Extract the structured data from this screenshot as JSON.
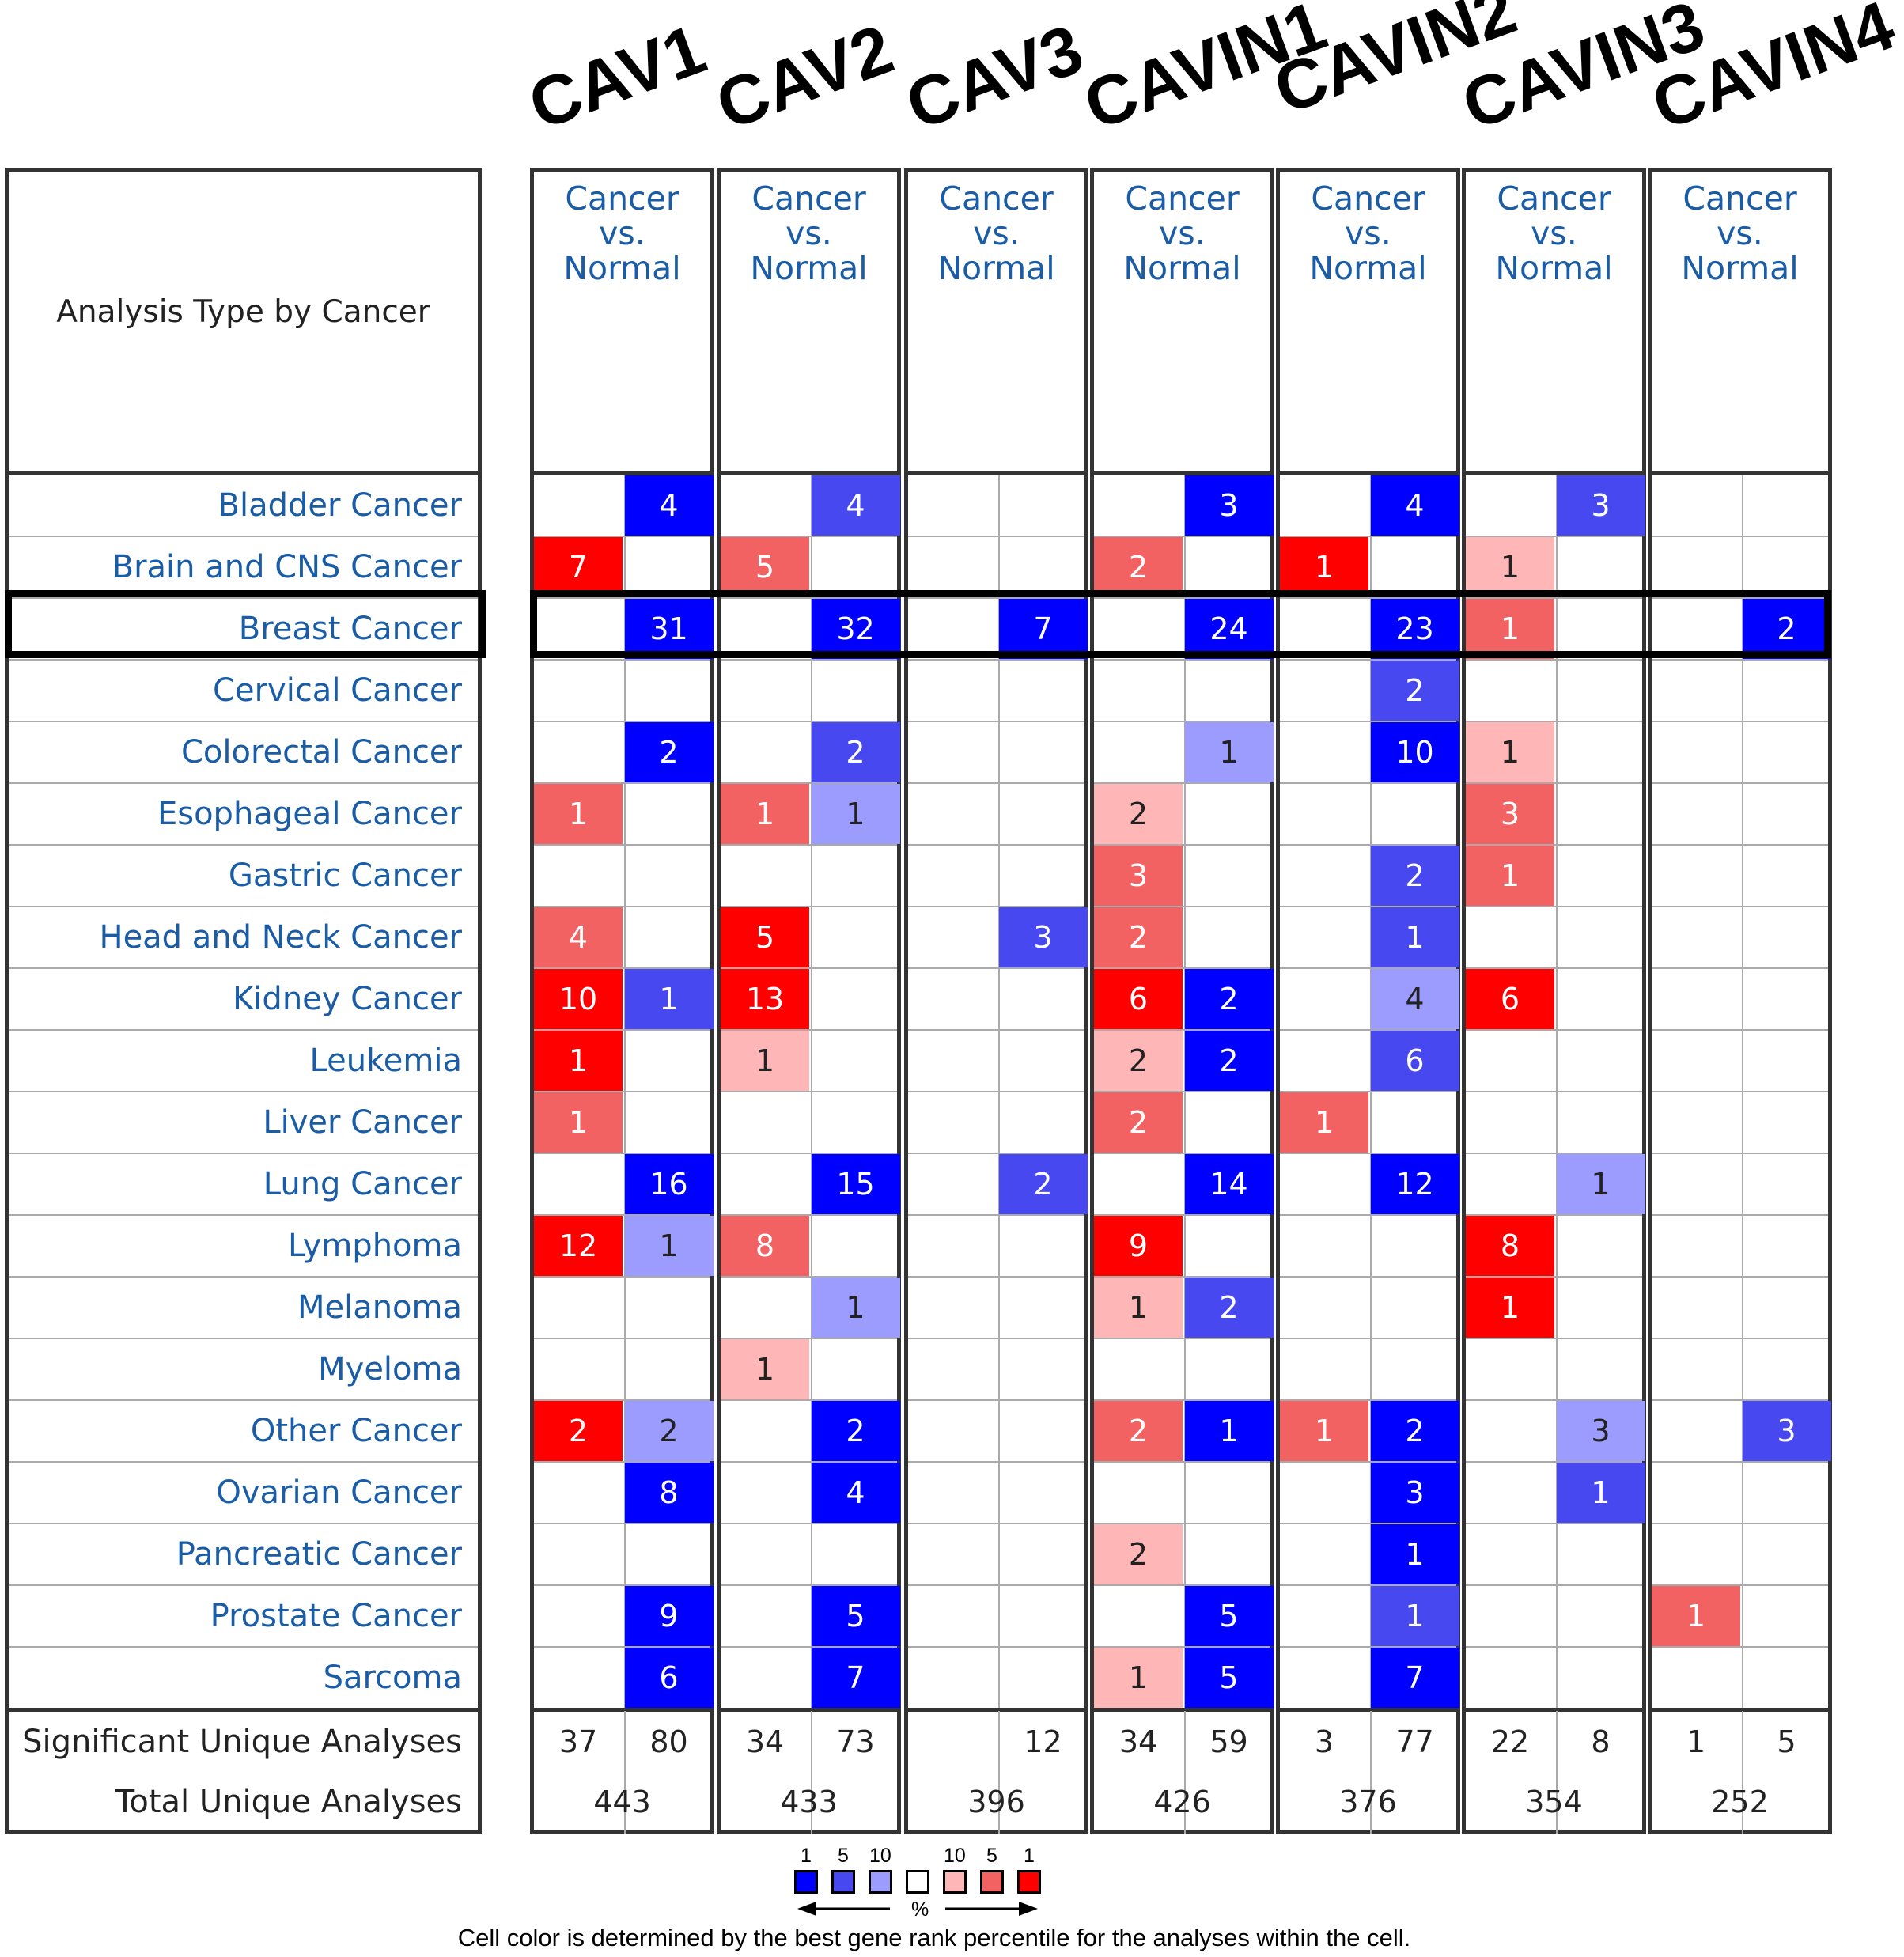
{
  "genes": [
    "CAV1",
    "CAV2",
    "CAV3",
    "CAVIN1",
    "CAVIN2",
    "CAVIN3",
    "CAVIN4"
  ],
  "header_cell": "Cancer\nvs.\nNormal",
  "header_lines": [
    "Cancer",
    "vs.",
    "Normal"
  ],
  "analysis_type_label": "Analysis Type by Cancer",
  "cancers": [
    "Bladder Cancer",
    "Brain and CNS Cancer",
    "Breast Cancer",
    "Cervical Cancer",
    "Colorectal Cancer",
    "Esophageal Cancer",
    "Gastric Cancer",
    "Head and Neck Cancer",
    "Kidney Cancer",
    "Leukemia",
    "Liver Cancer",
    "Lung Cancer",
    "Lymphoma",
    "Melanoma",
    "Myeloma",
    "Other Cancer",
    "Ovarian Cancer",
    "Pancreatic Cancer",
    "Prostate Cancer",
    "Sarcoma"
  ],
  "highlighted_cancer": "Breast Cancer",
  "colors": {
    "red1": "#ff0000",
    "red5": "#f36262",
    "red10": "#ffb6b6",
    "blue1": "#0000ff",
    "blue5": "#4848f0",
    "blue10": "#9c9cff",
    "border": "#333333",
    "link": "#1a5ca6"
  },
  "cells": {
    "CAV1": {
      "up": [
        null,
        {
          "v": "7",
          "c": "red1"
        },
        null,
        null,
        null,
        {
          "v": "1",
          "c": "red5"
        },
        null,
        {
          "v": "4",
          "c": "red5"
        },
        {
          "v": "10",
          "c": "red1"
        },
        {
          "v": "1",
          "c": "red1"
        },
        {
          "v": "1",
          "c": "red5"
        },
        null,
        {
          "v": "12",
          "c": "red1"
        },
        null,
        null,
        {
          "v": "2",
          "c": "red1"
        },
        null,
        null,
        null,
        null
      ],
      "down": [
        {
          "v": "4",
          "c": "blue1"
        },
        null,
        {
          "v": "31",
          "c": "blue1"
        },
        null,
        {
          "v": "2",
          "c": "blue1"
        },
        null,
        null,
        null,
        {
          "v": "1",
          "c": "blue5"
        },
        null,
        null,
        {
          "v": "16",
          "c": "blue1"
        },
        {
          "v": "1",
          "c": "blue10"
        },
        null,
        null,
        {
          "v": "2",
          "c": "blue10"
        },
        {
          "v": "8",
          "c": "blue1"
        },
        null,
        {
          "v": "9",
          "c": "blue1"
        },
        {
          "v": "6",
          "c": "blue1"
        }
      ]
    },
    "CAV2": {
      "up": [
        null,
        {
          "v": "5",
          "c": "red5"
        },
        null,
        null,
        null,
        {
          "v": "1",
          "c": "red5"
        },
        null,
        {
          "v": "5",
          "c": "red1"
        },
        {
          "v": "13",
          "c": "red1"
        },
        {
          "v": "1",
          "c": "red10"
        },
        null,
        null,
        {
          "v": "8",
          "c": "red5"
        },
        null,
        {
          "v": "1",
          "c": "red10"
        },
        null,
        null,
        null,
        null,
        null
      ],
      "down": [
        {
          "v": "4",
          "c": "blue5"
        },
        null,
        {
          "v": "32",
          "c": "blue1"
        },
        null,
        {
          "v": "2",
          "c": "blue5"
        },
        {
          "v": "1",
          "c": "blue10"
        },
        null,
        null,
        null,
        null,
        null,
        {
          "v": "15",
          "c": "blue1"
        },
        null,
        {
          "v": "1",
          "c": "blue10"
        },
        null,
        {
          "v": "2",
          "c": "blue1"
        },
        {
          "v": "4",
          "c": "blue1"
        },
        null,
        {
          "v": "5",
          "c": "blue1"
        },
        {
          "v": "7",
          "c": "blue1"
        }
      ]
    },
    "CAV3": {
      "up": [
        null,
        null,
        null,
        null,
        null,
        null,
        null,
        null,
        null,
        null,
        null,
        null,
        null,
        null,
        null,
        null,
        null,
        null,
        null,
        null
      ],
      "down": [
        null,
        null,
        {
          "v": "7",
          "c": "blue1"
        },
        null,
        null,
        null,
        null,
        {
          "v": "3",
          "c": "blue5"
        },
        null,
        null,
        null,
        {
          "v": "2",
          "c": "blue5"
        },
        null,
        null,
        null,
        null,
        null,
        null,
        null,
        null
      ]
    },
    "CAVIN1": {
      "up": [
        null,
        {
          "v": "2",
          "c": "red5"
        },
        null,
        null,
        null,
        {
          "v": "2",
          "c": "red10"
        },
        {
          "v": "3",
          "c": "red5"
        },
        {
          "v": "2",
          "c": "red5"
        },
        {
          "v": "6",
          "c": "red1"
        },
        {
          "v": "2",
          "c": "red10"
        },
        {
          "v": "2",
          "c": "red5"
        },
        null,
        {
          "v": "9",
          "c": "red1"
        },
        {
          "v": "1",
          "c": "red10"
        },
        null,
        {
          "v": "2",
          "c": "red5"
        },
        null,
        {
          "v": "2",
          "c": "red10"
        },
        null,
        {
          "v": "1",
          "c": "red10"
        }
      ],
      "down": [
        {
          "v": "3",
          "c": "blue1"
        },
        null,
        {
          "v": "24",
          "c": "blue1"
        },
        null,
        {
          "v": "1",
          "c": "blue10"
        },
        null,
        null,
        null,
        {
          "v": "2",
          "c": "blue1"
        },
        {
          "v": "2",
          "c": "blue1"
        },
        null,
        {
          "v": "14",
          "c": "blue1"
        },
        null,
        {
          "v": "2",
          "c": "blue5"
        },
        null,
        {
          "v": "1",
          "c": "blue1"
        },
        null,
        null,
        {
          "v": "5",
          "c": "blue1"
        },
        {
          "v": "5",
          "c": "blue1"
        }
      ]
    },
    "CAVIN2": {
      "up": [
        null,
        {
          "v": "1",
          "c": "red1"
        },
        null,
        null,
        null,
        null,
        null,
        null,
        null,
        null,
        {
          "v": "1",
          "c": "red5"
        },
        null,
        null,
        null,
        null,
        {
          "v": "1",
          "c": "red5"
        },
        null,
        null,
        null,
        null
      ],
      "down": [
        {
          "v": "4",
          "c": "blue1"
        },
        null,
        {
          "v": "23",
          "c": "blue1"
        },
        {
          "v": "2",
          "c": "blue5"
        },
        {
          "v": "10",
          "c": "blue1"
        },
        null,
        {
          "v": "2",
          "c": "blue5"
        },
        {
          "v": "1",
          "c": "blue5"
        },
        {
          "v": "4",
          "c": "blue10"
        },
        {
          "v": "6",
          "c": "blue5"
        },
        null,
        {
          "v": "12",
          "c": "blue1"
        },
        null,
        null,
        null,
        {
          "v": "2",
          "c": "blue1"
        },
        {
          "v": "3",
          "c": "blue1"
        },
        {
          "v": "1",
          "c": "blue1"
        },
        {
          "v": "1",
          "c": "blue5"
        },
        {
          "v": "7",
          "c": "blue1"
        }
      ]
    },
    "CAVIN3": {
      "up": [
        null,
        {
          "v": "1",
          "c": "red10"
        },
        {
          "v": "1",
          "c": "red5"
        },
        null,
        {
          "v": "1",
          "c": "red10"
        },
        {
          "v": "3",
          "c": "red5"
        },
        {
          "v": "1",
          "c": "red5"
        },
        null,
        {
          "v": "6",
          "c": "red1"
        },
        null,
        null,
        null,
        {
          "v": "8",
          "c": "red1"
        },
        {
          "v": "1",
          "c": "red1"
        },
        null,
        null,
        null,
        null,
        null,
        null
      ],
      "down": [
        {
          "v": "3",
          "c": "blue5"
        },
        null,
        null,
        null,
        null,
        null,
        null,
        null,
        null,
        null,
        null,
        {
          "v": "1",
          "c": "blue10"
        },
        null,
        null,
        null,
        {
          "v": "3",
          "c": "blue10"
        },
        {
          "v": "1",
          "c": "blue5"
        },
        null,
        null,
        null
      ]
    },
    "CAVIN4": {
      "up": [
        null,
        null,
        null,
        null,
        null,
        null,
        null,
        null,
        null,
        null,
        null,
        null,
        null,
        null,
        null,
        null,
        null,
        null,
        {
          "v": "1",
          "c": "red5"
        },
        null
      ],
      "down": [
        null,
        null,
        {
          "v": "2",
          "c": "blue1"
        },
        null,
        null,
        null,
        null,
        null,
        null,
        null,
        null,
        null,
        null,
        null,
        null,
        {
          "v": "3",
          "c": "blue5"
        },
        null,
        null,
        null,
        null
      ]
    }
  },
  "footer": {
    "significant_label": "Significant Unique Analyses",
    "total_label": "Total Unique Analyses",
    "significant": {
      "CAV1": [
        "37",
        "80"
      ],
      "CAV2": [
        "34",
        "73"
      ],
      "CAV3": [
        "",
        "12"
      ],
      "CAVIN1": [
        "34",
        "59"
      ],
      "CAVIN2": [
        "3",
        "77"
      ],
      "CAVIN3": [
        "22",
        "8"
      ],
      "CAVIN4": [
        "1",
        "5"
      ]
    },
    "total": {
      "CAV1": "443",
      "CAV2": "433",
      "CAV3": "396",
      "CAVIN1": "426",
      "CAVIN2": "376",
      "CAVIN3": "354",
      "CAVIN4": "252"
    }
  },
  "legend": {
    "blue_ticks": [
      "1",
      "5",
      "10"
    ],
    "red_ticks": [
      "10",
      "5",
      "1"
    ],
    "unit": "%",
    "caption": "Cell color is determined by the best gene rank percentile for the analyses within the cell."
  }
}
